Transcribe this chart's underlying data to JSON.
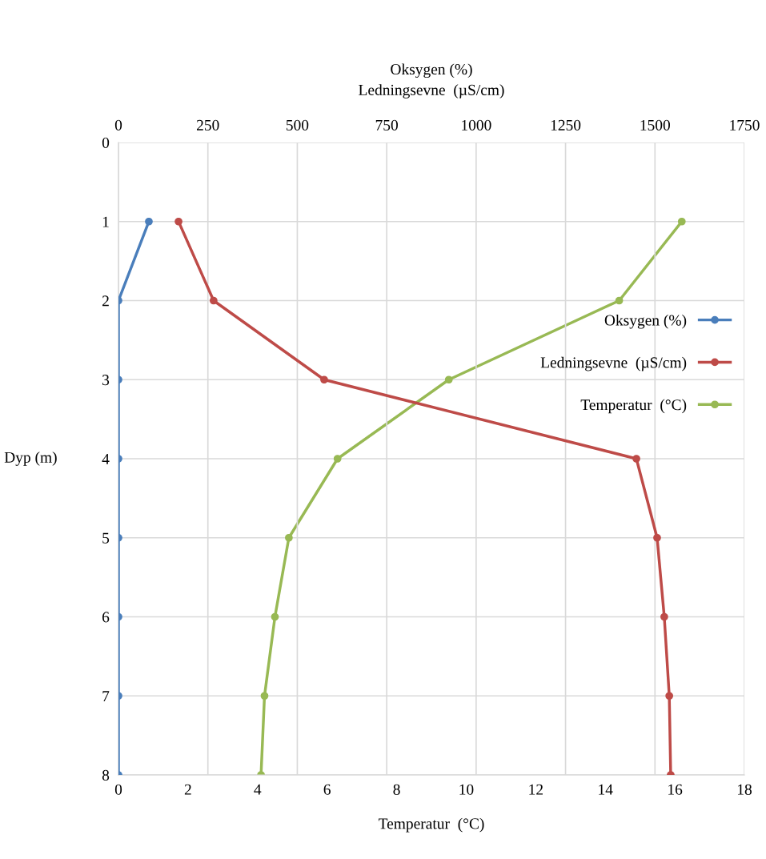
{
  "chart_data": {
    "type": "line",
    "xlabel": "Temperatur  (°C)",
    "x2label": "Oksygen (%)\nLedningsevne  (µS/cm)",
    "ylabel": "Dyp (m)",
    "series": [
      {
        "name": "Oksygen (%)",
        "color": "#4a7ebb",
        "axis": "x2",
        "x": [
          85,
          0,
          0,
          0,
          0,
          0,
          0,
          0
        ],
        "values": [
          1,
          2,
          3,
          4,
          5,
          6,
          7,
          8
        ]
      },
      {
        "name": "Ledningsevne  (µS/cm)",
        "color": "#be4b48",
        "axis": "x2",
        "x": [
          168,
          266,
          575,
          1448,
          1506,
          1526,
          1540,
          1544
        ],
        "values": [
          1,
          2,
          3,
          4,
          5,
          6,
          7,
          8
        ]
      },
      {
        "name": "Temperatur  (°C)",
        "color": "#98b954",
        "x": [
          16.2,
          14.4,
          9.5,
          6.3,
          4.9,
          4.5,
          4.2,
          4.1
        ],
        "values": [
          1,
          2,
          3,
          4,
          5,
          6,
          7,
          8
        ]
      }
    ],
    "ylim": [
      8,
      0
    ],
    "yticks": [
      0,
      1,
      2,
      3,
      4,
      5,
      6,
      7,
      8
    ],
    "xlim": [
      0,
      18
    ],
    "xticks": [
      0,
      2,
      4,
      6,
      8,
      10,
      12,
      14,
      16,
      18
    ],
    "x2lim": [
      0,
      1750
    ],
    "x2ticks": [
      0,
      250,
      500,
      750,
      1000,
      1250,
      1500,
      1750
    ],
    "grid": true,
    "legend": "right",
    "marker": "circle",
    "line_style": "solid"
  }
}
